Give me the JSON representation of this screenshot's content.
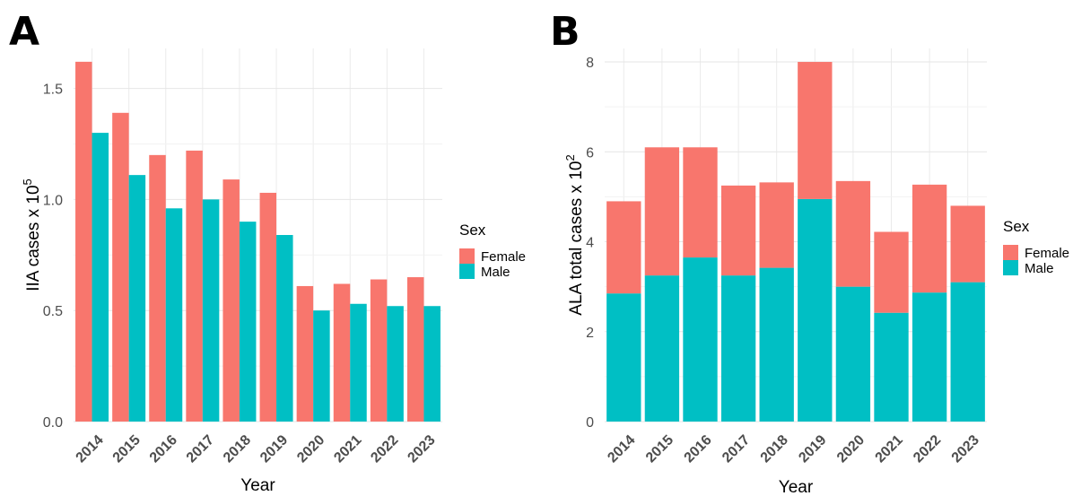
{
  "panels": [
    {
      "letter": "A"
    },
    {
      "letter": "B"
    }
  ],
  "chart_data": [
    {
      "type": "bar",
      "layout": "dodged",
      "panel": "A",
      "categories": [
        "2014",
        "2015",
        "2016",
        "2017",
        "2018",
        "2019",
        "2020",
        "2021",
        "2022",
        "2023"
      ],
      "series": [
        {
          "name": "Female",
          "color": "#F8766D",
          "values": [
            1.62,
            1.39,
            1.2,
            1.22,
            1.09,
            1.03,
            0.61,
            0.62,
            0.64,
            0.65
          ]
        },
        {
          "name": "Male",
          "color": "#00BFC4",
          "values": [
            1.3,
            1.11,
            0.96,
            1.0,
            0.9,
            0.84,
            0.5,
            0.53,
            0.52,
            0.52
          ]
        }
      ],
      "xlabel": "Year",
      "ylabel_text": "IIA cases x 10",
      "ylabel_sup": "5",
      "ylim": [
        0,
        1.68
      ],
      "yticks": [
        0.0,
        0.5,
        1.0,
        1.5
      ],
      "ytick_labels": [
        "0.0",
        "0.5",
        "1.0",
        "1.5"
      ],
      "legend_title": "Sex",
      "legend_position": "right",
      "grid": true
    },
    {
      "type": "bar",
      "layout": "stacked",
      "panel": "B",
      "categories": [
        "2014",
        "2015",
        "2016",
        "2017",
        "2018",
        "2019",
        "2020",
        "2021",
        "2022",
        "2023"
      ],
      "series": [
        {
          "name": "Female",
          "color": "#F8766D",
          "values": [
            2.05,
            2.85,
            2.45,
            2.0,
            1.9,
            3.05,
            2.35,
            1.8,
            2.4,
            1.7
          ]
        },
        {
          "name": "Male",
          "color": "#00BFC4",
          "values": [
            2.85,
            3.25,
            3.65,
            3.25,
            3.42,
            4.95,
            3.0,
            2.42,
            2.87,
            3.1
          ]
        }
      ],
      "totals": [
        4.9,
        6.1,
        6.1,
        5.25,
        5.32,
        8.0,
        5.35,
        4.22,
        5.27,
        4.8
      ],
      "xlabel": "Year",
      "ylabel_text": "ALA total cases x 10",
      "ylabel_sup": "2",
      "ylim": [
        0,
        8.3
      ],
      "yticks": [
        0,
        2,
        4,
        6,
        8
      ],
      "ytick_labels": [
        "0",
        "2",
        "4",
        "6",
        "8"
      ],
      "legend_title": "Sex",
      "legend_position": "right",
      "grid": true
    }
  ]
}
